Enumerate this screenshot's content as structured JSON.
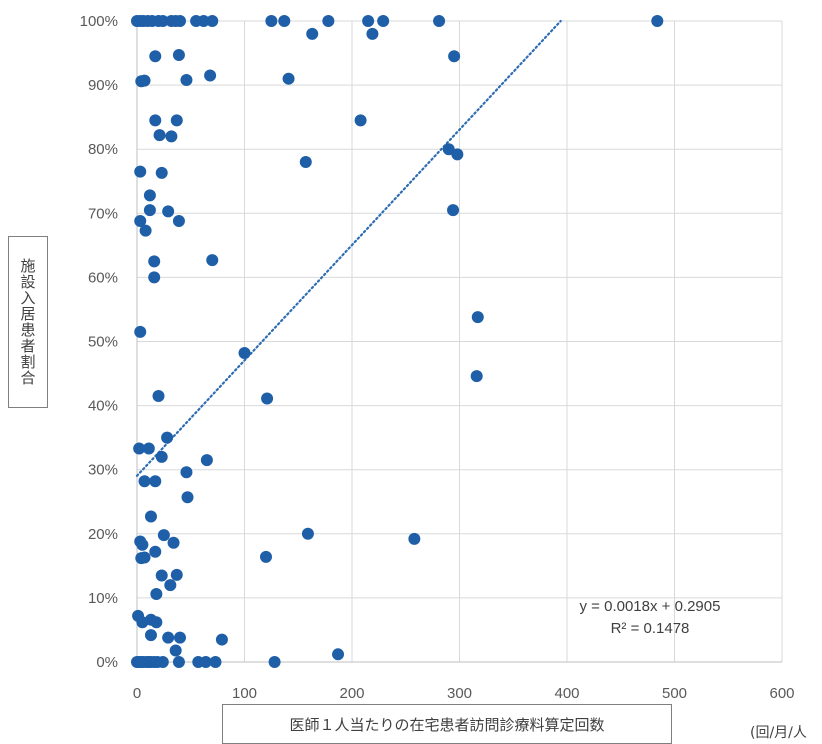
{
  "chart_data": {
    "type": "scatter",
    "title": "",
    "xlabel": "医師１人当たりの在宅患者訪問診療料算定回数",
    "x_unit": "(回/月/人",
    "ylabel": "施設入居患者割合",
    "xlim": [
      0,
      600
    ],
    "ylim": [
      0,
      1
    ],
    "x_ticks": [
      "0",
      "100",
      "200",
      "300",
      "400",
      "500",
      "600"
    ],
    "y_ticks": [
      "0%",
      "10%",
      "20%",
      "30%",
      "40%",
      "50%",
      "60%",
      "70%",
      "80%",
      "90%",
      "100%"
    ],
    "grid": true,
    "marker_color": "#1f5fa8",
    "trendline": {
      "style": "dotted",
      "color": "#2e6db4",
      "slope": 0.0018,
      "intercept": 0.2905,
      "equation": "y = 0.0018x + 0.2905",
      "r2": "R² = 0.1478"
    },
    "points": [
      [
        0,
        1.0
      ],
      [
        3,
        1.0
      ],
      [
        6,
        1.0
      ],
      [
        10,
        1.0
      ],
      [
        14,
        1.0
      ],
      [
        20,
        1.0
      ],
      [
        24,
        1.0
      ],
      [
        32,
        1.0
      ],
      [
        36,
        1.0
      ],
      [
        40,
        1.0
      ],
      [
        55,
        1.0
      ],
      [
        62,
        1.0
      ],
      [
        70,
        1.0
      ],
      [
        125,
        1.0
      ],
      [
        137,
        1.0
      ],
      [
        178,
        1.0
      ],
      [
        215,
        1.0
      ],
      [
        229,
        1.0
      ],
      [
        281,
        1.0
      ],
      [
        484,
        1.0
      ],
      [
        163,
        0.98
      ],
      [
        219,
        0.98
      ],
      [
        17,
        0.945
      ],
      [
        39,
        0.947
      ],
      [
        295,
        0.945
      ],
      [
        4,
        0.906
      ],
      [
        7,
        0.907
      ],
      [
        46,
        0.908
      ],
      [
        68,
        0.915
      ],
      [
        141,
        0.91
      ],
      [
        17,
        0.845
      ],
      [
        37,
        0.845
      ],
      [
        208,
        0.845
      ],
      [
        21,
        0.822
      ],
      [
        32,
        0.82
      ],
      [
        290,
        0.8
      ],
      [
        298,
        0.792
      ],
      [
        157,
        0.78
      ],
      [
        3,
        0.765
      ],
      [
        23,
        0.763
      ],
      [
        12,
        0.728
      ],
      [
        12,
        0.705
      ],
      [
        29,
        0.703
      ],
      [
        294,
        0.705
      ],
      [
        3,
        0.688
      ],
      [
        39,
        0.688
      ],
      [
        8,
        0.673
      ],
      [
        16,
        0.625
      ],
      [
        70,
        0.627
      ],
      [
        16,
        0.6
      ],
      [
        317,
        0.538
      ],
      [
        3,
        0.515
      ],
      [
        100,
        0.482
      ],
      [
        316,
        0.446
      ],
      [
        20,
        0.415
      ],
      [
        121,
        0.411
      ],
      [
        28,
        0.35
      ],
      [
        2,
        0.333
      ],
      [
        11,
        0.333
      ],
      [
        23,
        0.32
      ],
      [
        65,
        0.315
      ],
      [
        46,
        0.296
      ],
      [
        7,
        0.282
      ],
      [
        17,
        0.282
      ],
      [
        47,
        0.257
      ],
      [
        13,
        0.227
      ],
      [
        25,
        0.198
      ],
      [
        159,
        0.2
      ],
      [
        258,
        0.192
      ],
      [
        3,
        0.188
      ],
      [
        5,
        0.183
      ],
      [
        34,
        0.186
      ],
      [
        17,
        0.172
      ],
      [
        4,
        0.162
      ],
      [
        7,
        0.163
      ],
      [
        120,
        0.164
      ],
      [
        23,
        0.135
      ],
      [
        37,
        0.136
      ],
      [
        31,
        0.12
      ],
      [
        18,
        0.106
      ],
      [
        1,
        0.072
      ],
      [
        5,
        0.062
      ],
      [
        13,
        0.066
      ],
      [
        18,
        0.062
      ],
      [
        13,
        0.042
      ],
      [
        29,
        0.038
      ],
      [
        40,
        0.038
      ],
      [
        79,
        0.035
      ],
      [
        36,
        0.018
      ],
      [
        187,
        0.012
      ],
      [
        0,
        0.0
      ],
      [
        2,
        0.0
      ],
      [
        4,
        0.0
      ],
      [
        6,
        0.0
      ],
      [
        9,
        0.0
      ],
      [
        11,
        0.0
      ],
      [
        13,
        0.0
      ],
      [
        16,
        0.0
      ],
      [
        19,
        0.0
      ],
      [
        24,
        0.0
      ],
      [
        39,
        0.0
      ],
      [
        57,
        0.0
      ],
      [
        64,
        0.0
      ],
      [
        73,
        0.0
      ],
      [
        128,
        0.0
      ]
    ]
  }
}
